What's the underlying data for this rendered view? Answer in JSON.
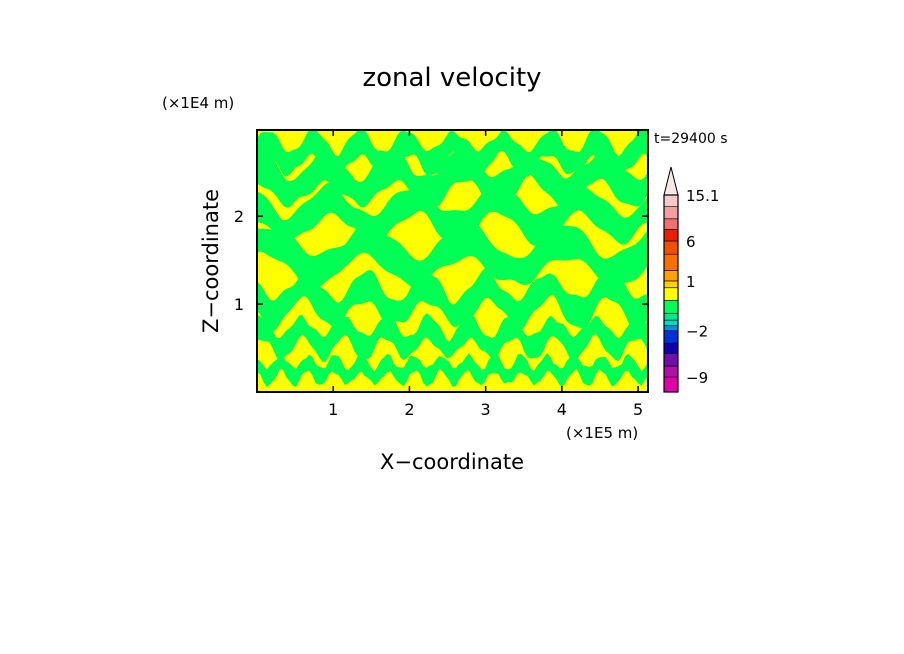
{
  "chart_data": {
    "type": "heatmap",
    "title": "zonal velocity",
    "xlabel": "X−coordinate",
    "ylabel": "Z−coordinate",
    "x_unit": "(×1E5 m)",
    "y_unit": "(×1E4 m)",
    "time_label": "t=29400 s",
    "xlim": [
      0.0,
      5.13
    ],
    "ylim": [
      0.0,
      2.98
    ],
    "x_ticks": [
      1,
      2,
      3,
      4,
      5
    ],
    "y_ticks": [
      1,
      2
    ],
    "x_tick_labels": [
      "1",
      "2",
      "3",
      "4",
      "5"
    ],
    "y_tick_labels": [
      "1",
      "2"
    ],
    "grid": false,
    "colorbar": {
      "placement": "right",
      "tick_labels": [
        "15.1",
        "6",
        "1",
        "−2",
        "−9"
      ],
      "levels": [
        {
          "lower": -12,
          "upper": -9,
          "color": "#e000a8"
        },
        {
          "lower": -9,
          "upper": -7,
          "color": "#b010a8"
        },
        {
          "lower": -7,
          "upper": -5,
          "color": "#7010a8"
        },
        {
          "lower": -5,
          "upper": -3.5,
          "color": "#1000b0"
        },
        {
          "lower": -3.5,
          "upper": -2,
          "color": "#0030d8"
        },
        {
          "lower": -2,
          "upper": -1.5,
          "color": "#0090e0"
        },
        {
          "lower": -1.5,
          "upper": -1,
          "color": "#00d8c8"
        },
        {
          "lower": -1,
          "upper": -0.5,
          "color": "#00e890"
        },
        {
          "lower": -0.5,
          "upper": 0,
          "color": "#00ff55"
        },
        {
          "lower": 0,
          "upper": 0.5,
          "color": "#ffff00"
        },
        {
          "lower": 0.5,
          "upper": 1,
          "color": "#ffd000"
        },
        {
          "lower": 1,
          "upper": 2,
          "color": "#ffa000"
        },
        {
          "lower": 2,
          "upper": 4,
          "color": "#f87000"
        },
        {
          "lower": 4,
          "upper": 6,
          "color": "#f05000"
        },
        {
          "lower": 6,
          "upper": 8,
          "color": "#e82000"
        },
        {
          "lower": 8,
          "upper": 10,
          "color": "#f07070"
        },
        {
          "lower": 10,
          "upper": 12.5,
          "color": "#f0a0a0"
        },
        {
          "lower": 12.5,
          "upper": 15.1,
          "color": "#f8c8c8"
        }
      ],
      "extend_max_color": "#f8e8e8"
    },
    "field_colors": {
      "positive": "#ffff00",
      "negative": "#00ff55"
    },
    "bands": [
      {
        "z_center": 2.72,
        "amplitude": 0.12,
        "wavelength": 0.62,
        "phase": 0.4,
        "thickness": 0.13
      },
      {
        "z_center": 2.42,
        "amplitude": 0.15,
        "wavelength": 0.9,
        "phase": 1.6,
        "thickness": 0.16
      },
      {
        "z_center": 2.02,
        "amplitude": 0.16,
        "wavelength": 1.1,
        "phase": 2.4,
        "thickness": 0.15
      },
      {
        "z_center": 1.55,
        "amplitude": 0.18,
        "wavelength": 1.3,
        "phase": 0.9,
        "thickness": 0.17
      },
      {
        "z_center": 1.05,
        "amplitude": 0.16,
        "wavelength": 0.8,
        "phase": 3.0,
        "thickness": 0.15
      },
      {
        "z_center": 0.62,
        "amplitude": 0.12,
        "wavelength": 0.55,
        "phase": 1.1,
        "thickness": 0.12
      },
      {
        "z_center": 0.25,
        "amplitude": 0.08,
        "wavelength": 0.35,
        "phase": 2.2,
        "thickness": 0.09
      }
    ]
  }
}
